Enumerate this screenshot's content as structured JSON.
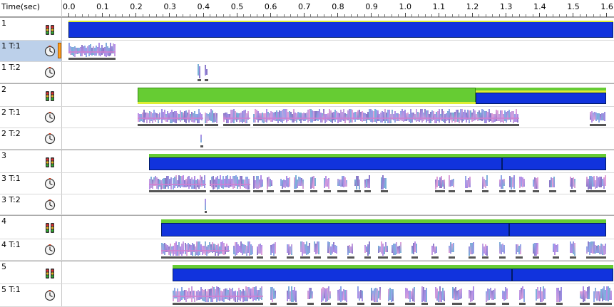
{
  "ruler": {
    "label": "Time(sec)",
    "tick_labels": [
      "0.0",
      "0.1",
      "0.2",
      "0.3",
      "0.4",
      "0.5",
      "0.6",
      "0.7",
      "0.8",
      "0.9",
      "1.0",
      "1.1",
      "1.2",
      "1.3",
      "1.4",
      "1.5",
      "1.6"
    ],
    "tick_values": [
      0.0,
      0.1,
      0.2,
      0.3,
      0.4,
      0.5,
      0.6,
      0.7,
      0.8,
      0.9,
      1.0,
      1.1,
      1.2,
      1.3,
      1.4,
      1.5,
      1.6
    ],
    "time_range_sec": [
      0.0,
      1.62
    ]
  },
  "icons": {
    "process": "process-traffic-light-icon",
    "thread": "thread-clock-icon"
  },
  "colors": {
    "process_bar": "#1133dd",
    "process_active": "#66cc33",
    "process_highlight": "#ddee33",
    "selection": "#bcd0ea",
    "selection_marker": "#ffa020",
    "activity_palette": [
      "#9b8ee0",
      "#b48de8",
      "#8ea8e8",
      "#c79ee0",
      "#7ab0d8",
      "#e0a0d8",
      "#8a78c8"
    ]
  },
  "rows": [
    {
      "label": "1",
      "kind": "process",
      "start": 0.0,
      "end": 1.62,
      "active_start": null,
      "active_end": null
    },
    {
      "label": "1 T:1",
      "kind": "thread",
      "selected": true,
      "segments": [
        [
          0.0,
          0.14
        ]
      ]
    },
    {
      "label": "1 T:2",
      "kind": "thread",
      "segments": [
        [
          0.383,
          0.395
        ],
        [
          0.405,
          0.415
        ]
      ]
    },
    {
      "label": "2",
      "kind": "process",
      "start": 0.205,
      "end": 1.6,
      "active_start": 0.205,
      "active_end": 1.21,
      "split": 1.21
    },
    {
      "label": "2 T:1",
      "kind": "thread",
      "segments": [
        [
          0.205,
          0.275
        ],
        [
          0.275,
          0.4
        ],
        [
          0.405,
          0.445
        ],
        [
          0.46,
          0.54
        ],
        [
          0.55,
          1.34
        ],
        [
          1.55,
          1.6
        ]
      ]
    },
    {
      "label": "2 T:2",
      "kind": "thread",
      "segments": [
        [
          0.392,
          0.4
        ]
      ]
    },
    {
      "label": "3",
      "kind": "process",
      "start": 0.24,
      "end": 1.6,
      "active_start": 0.24,
      "active_end": 1.6,
      "split": 1.29
    },
    {
      "label": "3 T:1",
      "kind": "thread",
      "segments": [
        [
          0.24,
          0.31
        ],
        [
          0.31,
          0.41
        ],
        [
          0.42,
          0.54
        ],
        [
          0.55,
          0.58
        ],
        [
          0.59,
          0.61
        ],
        [
          0.63,
          0.66
        ],
        [
          0.67,
          0.7
        ],
        [
          0.72,
          0.74
        ],
        [
          0.76,
          0.78
        ],
        [
          0.8,
          0.83
        ],
        [
          0.85,
          0.87
        ],
        [
          0.88,
          0.9
        ],
        [
          0.93,
          0.95
        ],
        [
          1.09,
          1.12
        ],
        [
          1.13,
          1.15
        ],
        [
          1.18,
          1.2
        ],
        [
          1.23,
          1.25
        ],
        [
          1.28,
          1.3
        ],
        [
          1.31,
          1.33
        ],
        [
          1.34,
          1.36
        ],
        [
          1.38,
          1.4
        ],
        [
          1.43,
          1.45
        ],
        [
          1.49,
          1.51
        ],
        [
          1.54,
          1.6
        ]
      ]
    },
    {
      "label": "3 T:2",
      "kind": "thread",
      "segments": [
        [
          0.405,
          0.412
        ]
      ]
    },
    {
      "label": "4",
      "kind": "process",
      "start": 0.275,
      "end": 1.6,
      "active_start": 0.275,
      "active_end": 1.6,
      "split": 1.31
    },
    {
      "label": "4 T:1",
      "kind": "thread",
      "segments": [
        [
          0.275,
          0.345
        ],
        [
          0.345,
          0.48
        ],
        [
          0.49,
          0.55
        ],
        [
          0.56,
          0.58
        ],
        [
          0.6,
          0.62
        ],
        [
          0.65,
          0.67
        ],
        [
          0.69,
          0.72
        ],
        [
          0.73,
          0.75
        ],
        [
          0.77,
          0.8
        ],
        [
          0.83,
          0.85
        ],
        [
          0.88,
          0.9
        ],
        [
          0.92,
          0.95
        ],
        [
          0.96,
          0.99
        ],
        [
          1.02,
          1.04
        ],
        [
          1.08,
          1.1
        ],
        [
          1.13,
          1.15
        ],
        [
          1.19,
          1.21
        ],
        [
          1.23,
          1.25
        ],
        [
          1.28,
          1.3
        ],
        [
          1.33,
          1.35
        ],
        [
          1.38,
          1.4
        ],
        [
          1.44,
          1.46
        ],
        [
          1.49,
          1.51
        ],
        [
          1.54,
          1.6
        ]
      ]
    },
    {
      "label": "5",
      "kind": "process",
      "start": 0.31,
      "end": 1.62,
      "active_start": 0.31,
      "active_end": 1.62,
      "split": 1.32
    },
    {
      "label": "5 T:1",
      "kind": "thread",
      "segments": [
        [
          0.31,
          0.38
        ],
        [
          0.38,
          0.5
        ],
        [
          0.5,
          0.58
        ],
        [
          0.6,
          0.62
        ],
        [
          0.65,
          0.68
        ],
        [
          0.71,
          0.73
        ],
        [
          0.75,
          0.78
        ],
        [
          0.8,
          0.83
        ],
        [
          0.86,
          0.88
        ],
        [
          0.9,
          0.93
        ],
        [
          0.95,
          0.97
        ],
        [
          1.0,
          1.03
        ],
        [
          1.05,
          1.07
        ],
        [
          1.09,
          1.12
        ],
        [
          1.14,
          1.17
        ],
        [
          1.19,
          1.21
        ],
        [
          1.24,
          1.27
        ],
        [
          1.29,
          1.31
        ],
        [
          1.34,
          1.36
        ],
        [
          1.39,
          1.42
        ],
        [
          1.45,
          1.47
        ],
        [
          1.52,
          1.55
        ],
        [
          1.56,
          1.62
        ]
      ]
    }
  ]
}
